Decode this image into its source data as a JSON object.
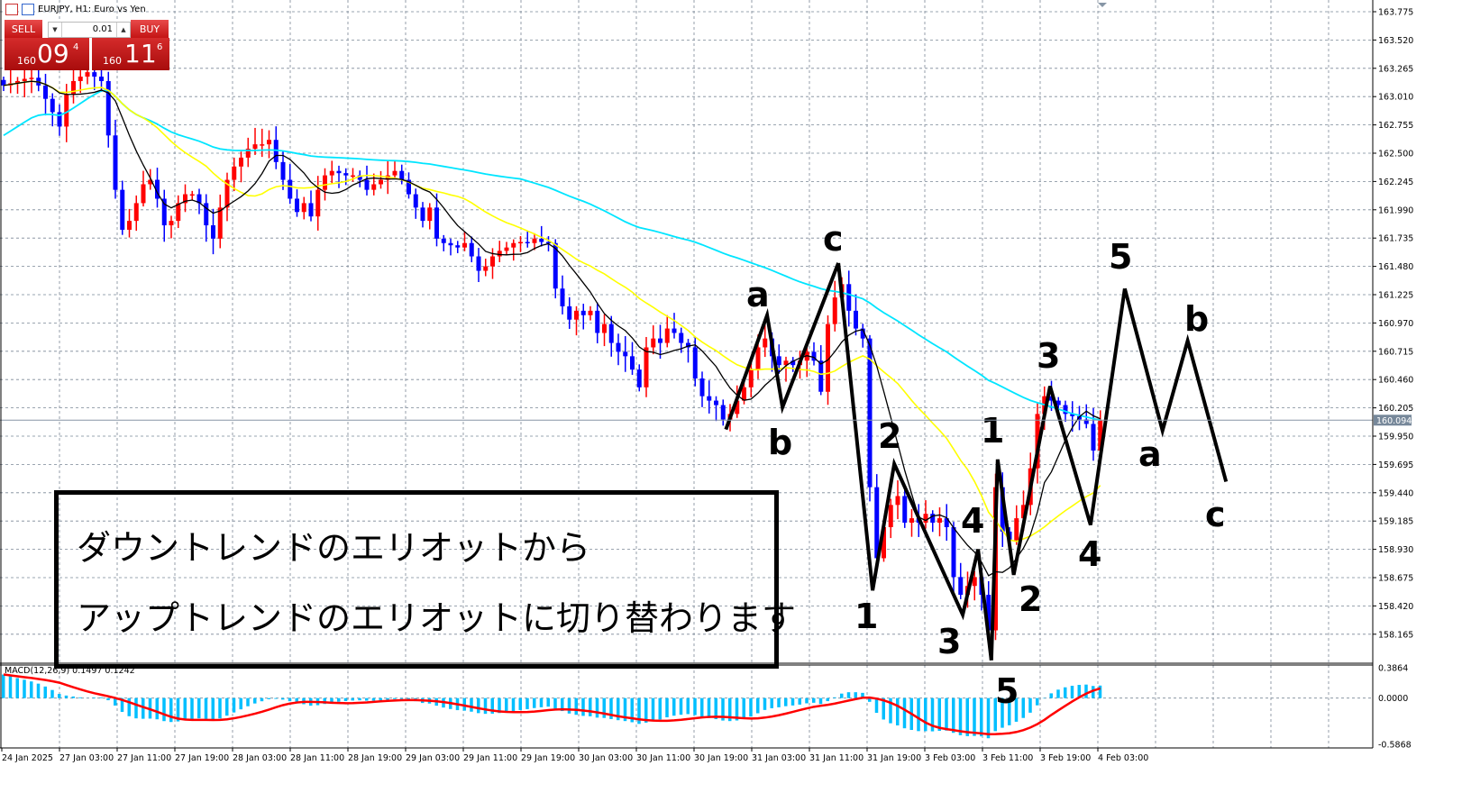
{
  "window": {
    "title": "EURJPY, H1: Euro vs Yen"
  },
  "trade_panel": {
    "sell_label": "SELL",
    "buy_label": "BUY",
    "lot": "0.01",
    "sell_price": {
      "small": "160",
      "big": "09",
      "sup": "4"
    },
    "buy_price": {
      "small": "160",
      "big": "11",
      "sup": "6"
    }
  },
  "annotation": {
    "line1": "ダウントレンドのエリオットから",
    "line2": "アップトレンドのエリオットに切り替わります"
  },
  "colors": {
    "bull": "#ff0000",
    "bear": "#0000ff",
    "ma_fast": "#000000",
    "ma_mid": "#ffff00",
    "ma_slow": "#00e5ff",
    "macd_hist": "#00bfff",
    "macd_signal": "#ff0000",
    "grid": "#7a8796",
    "current_price_bg": "#77889a"
  },
  "chart_data": {
    "type": "candlestick",
    "symbol": "EURJPY",
    "timeframe": "H1",
    "price_ticks": [
      "163.775",
      "163.520",
      "163.265",
      "163.010",
      "162.755",
      "162.500",
      "162.245",
      "161.990",
      "161.735",
      "161.480",
      "161.225",
      "160.970",
      "160.715",
      "160.460",
      "160.205",
      "159.950",
      "159.695",
      "159.440",
      "159.185",
      "158.930",
      "158.675",
      "158.420",
      "158.165"
    ],
    "ylim": [
      158.0,
      163.85
    ],
    "current_price": "160.094",
    "time_labels": [
      "24 Jan 2025",
      "27 Jan 03:00",
      "27 Jan 11:00",
      "27 Jan 19:00",
      "28 Jan 03:00",
      "28 Jan 11:00",
      "28 Jan 19:00",
      "29 Jan 03:00",
      "29 Jan 11:00",
      "29 Jan 19:00",
      "30 Jan 03:00",
      "30 Jan 11:00",
      "30 Jan 19:00",
      "31 Jan 03:00",
      "31 Jan 11:00",
      "31 Jan 19:00",
      "3 Feb 03:00",
      "3 Feb 11:00",
      "3 Feb 19:00",
      "4 Feb 03:00"
    ],
    "closes": [
      163.11,
      163.13,
      163.15,
      163.17,
      163.18,
      163.11,
      162.99,
      162.87,
      162.74,
      163.03,
      163.15,
      163.19,
      163.23,
      163.19,
      163.15,
      162.66,
      162.17,
      161.81,
      161.89,
      162.05,
      162.22,
      162.26,
      162.09,
      161.85,
      161.89,
      162.05,
      162.13,
      162.13,
      162.05,
      161.85,
      161.73,
      162.01,
      162.26,
      162.38,
      162.46,
      162.54,
      162.58,
      162.58,
      162.62,
      162.42,
      162.26,
      162.09,
      161.97,
      162.05,
      161.93,
      162.17,
      162.3,
      162.34,
      162.32,
      162.3,
      162.3,
      162.26,
      162.17,
      162.22,
      162.26,
      162.3,
      162.34,
      162.26,
      162.13,
      162.01,
      161.89,
      162.01,
      161.73,
      161.69,
      161.67,
      161.65,
      161.69,
      161.57,
      161.44,
      161.48,
      161.57,
      161.62,
      161.65,
      161.69,
      161.7,
      161.69,
      161.73,
      161.7,
      161.69,
      161.28,
      161.12,
      161.0,
      161.08,
      161.04,
      161.08,
      160.88,
      160.96,
      160.79,
      160.71,
      160.67,
      160.55,
      160.39,
      160.75,
      160.83,
      160.79,
      160.92,
      160.88,
      160.79,
      160.75,
      160.47,
      160.31,
      160.27,
      160.23,
      160.1,
      160.15,
      160.27,
      160.39,
      160.55,
      160.75,
      160.83,
      160.67,
      160.59,
      160.63,
      160.59,
      160.63,
      160.71,
      160.63,
      160.35,
      160.96,
      161.2,
      161.32,
      161.08,
      160.92,
      160.83,
      159.49,
      158.85,
      159.13,
      159.33,
      159.41,
      159.17,
      159.21,
      159.17,
      159.25,
      159.17,
      159.21,
      159.13,
      158.68,
      158.52,
      158.6,
      158.68,
      158.52,
      158.2,
      159.49,
      159.09,
      159.01,
      159.21,
      159.33,
      159.66,
      160.15,
      160.31,
      160.27,
      160.23,
      160.15,
      160.13,
      160.1,
      160.06,
      159.82,
      160.09
    ],
    "indicators": {
      "macd": {
        "label": "MACD(12,26,9) 0.1497 0.1242",
        "ticks": [
          "0.3864",
          "0.0000",
          "-0.5868"
        ],
        "ylim": [
          -0.5868,
          0.3864
        ]
      }
    },
    "waves": {
      "abc_down": {
        "points": [
          [
            103.4,
            160.01
          ],
          [
            109.3,
            161.04
          ],
          [
            111.5,
            160.21
          ],
          [
            119.5,
            161.51
          ]
        ],
        "labels": [
          "a",
          "b",
          "c"
        ]
      },
      "impulse_down": {
        "points": [
          [
            119.5,
            161.51
          ],
          [
            124.4,
            158.56
          ],
          [
            127.5,
            159.7
          ],
          [
            137.3,
            158.34
          ],
          [
            139.5,
            158.93
          ],
          [
            141.4,
            157.93
          ]
        ],
        "labels": [
          "1",
          "2",
          "3",
          "4",
          "5"
        ]
      },
      "impulse_up": {
        "points": [
          [
            141.4,
            157.93
          ],
          [
            142.3,
            159.74
          ],
          [
            144.6,
            158.7
          ],
          [
            149.8,
            160.4
          ],
          [
            155.6,
            159.15
          ],
          [
            160.5,
            161.28
          ]
        ],
        "labels": [
          "1",
          "2",
          "3",
          "4",
          "5"
        ]
      },
      "abc_up": {
        "points": [
          [
            160.5,
            161.28
          ],
          [
            165.9,
            160.0
          ],
          [
            169.5,
            160.81
          ],
          [
            175.0,
            159.54
          ]
        ],
        "labels": [
          "a",
          "b",
          "c"
        ]
      }
    }
  }
}
